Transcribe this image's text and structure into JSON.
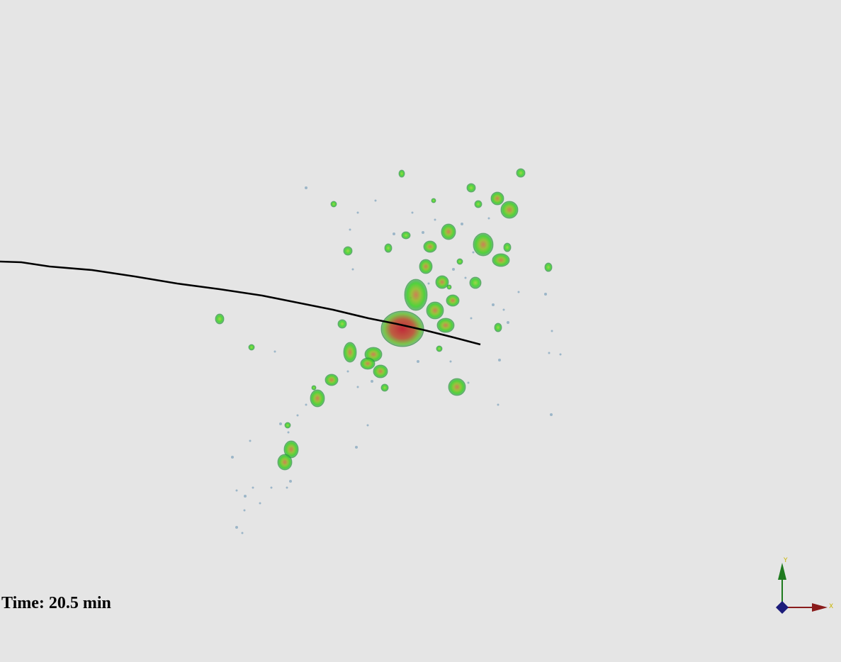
{
  "time_label": "Time: 20.5 min",
  "axes": {
    "x_label": "X",
    "y_label": "Y",
    "x_color": "#8a1c1c",
    "y_color": "#1e7a1e",
    "z_color": "#1c1c7a"
  },
  "colors": {
    "background": "#e5e5e5",
    "blob_outer": "#36c41e",
    "blob_inner": "#c05a2a",
    "core": "#b8202a",
    "speck": "#8aaac0",
    "trajectory": "#000000"
  }
}
